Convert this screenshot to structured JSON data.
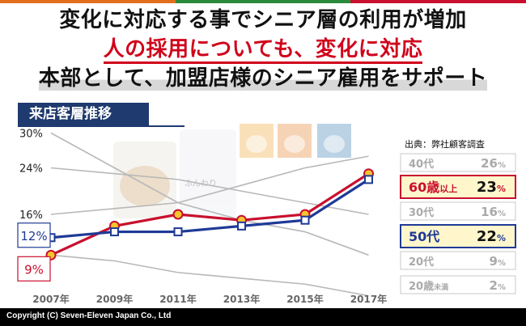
{
  "headline": {
    "line1": "変化に対応する事でシニア層の利用が増加",
    "line2": "人の採用についても、変化に対応",
    "line3": "本部として、加盟店様のシニア雇用をサポート"
  },
  "section_label": "来店客層推移",
  "source_note": "出典：弊社顧客調査",
  "photo_label": "ふんわり",
  "footer": "Copyright (C) Seven-Eleven Japan Co., Ltd",
  "colors": {
    "highlight60": "#c8102e",
    "highlight50": "#1f3a96",
    "faded": "#b8b8b8"
  },
  "chart_data": {
    "type": "line",
    "title": "来店客層推移",
    "x": [
      "2007年",
      "2009年",
      "2011年",
      "2013年",
      "2015年",
      "2017年"
    ],
    "ylim": [
      0,
      32
    ],
    "grid": false,
    "series": [
      {
        "name": "60歳以上",
        "suffix": "以上",
        "base": "60歳",
        "start_label": "9%",
        "end_value": "23",
        "values": [
          9,
          14,
          16,
          15,
          16,
          23
        ],
        "highlight": true,
        "color": "#c8102e"
      },
      {
        "name": "50代",
        "start_label": "12%",
        "end_value": "22",
        "values": [
          12,
          13,
          13,
          14,
          15,
          22
        ],
        "highlight": true,
        "color": "#1f3a96"
      },
      {
        "name": "40代",
        "start_label": "16%",
        "end_value": "26",
        "values": [
          16,
          17,
          18,
          21,
          24,
          26
        ],
        "highlight": false
      },
      {
        "name": "30代",
        "start_label": "24%",
        "end_value": "16",
        "values": [
          24,
          23,
          22,
          20,
          18,
          16
        ],
        "highlight": false
      },
      {
        "name": "20代",
        "start_label": "30%",
        "end_value": "9",
        "values": [
          30,
          24,
          18,
          15,
          13,
          9
        ],
        "highlight": false
      },
      {
        "name": "20歳未満",
        "base": "20歳",
        "suffix": "未満",
        "end_value": "2",
        "values": [
          9,
          8,
          6,
          5,
          4,
          2
        ],
        "highlight": false
      }
    ],
    "legend_order": [
      "40代",
      "60歳以上",
      "30代",
      "50代",
      "20代",
      "20歳未満"
    ]
  }
}
